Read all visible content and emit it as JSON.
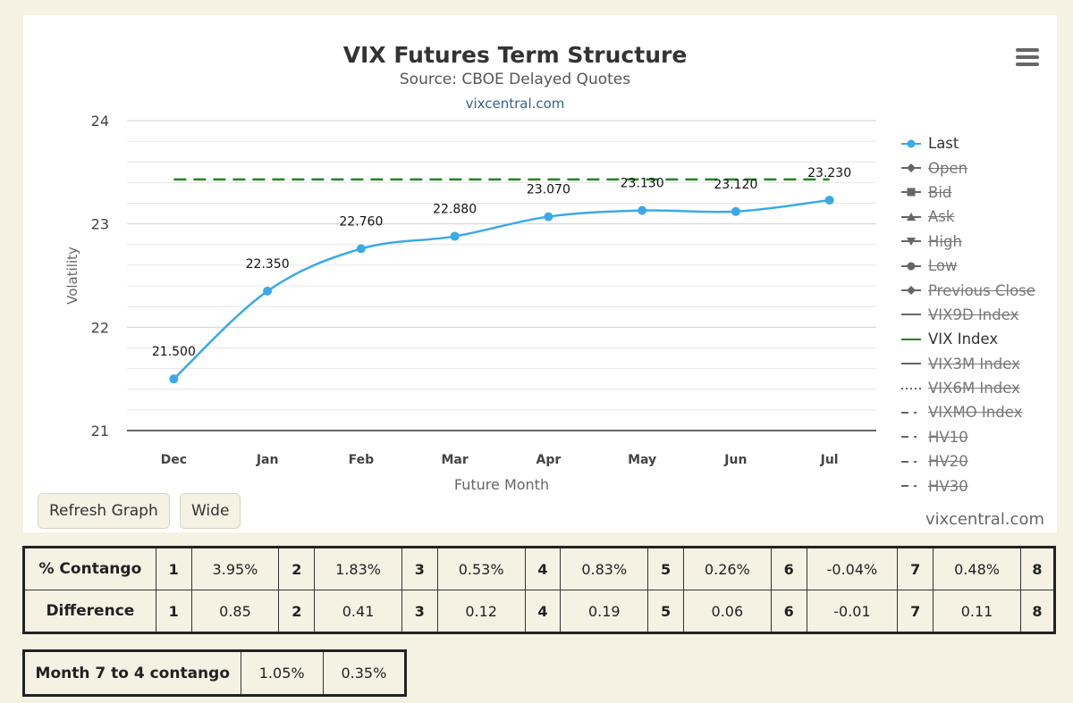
{
  "chart_data": {
    "type": "line",
    "title": "VIX Futures Term Structure",
    "subtitle": "Source: CBOE Delayed Quotes",
    "link": "vixcentral.com",
    "watermark": "vixcentral.com",
    "xlabel": "Future Month",
    "ylabel": "Volatility",
    "categories": [
      "Dec",
      "Jan",
      "Feb",
      "Mar",
      "Apr",
      "May",
      "Jun",
      "Jul"
    ],
    "ylim": [
      21,
      24
    ],
    "yticks": [
      "21",
      "22",
      "23",
      "24"
    ],
    "series": [
      {
        "name": "Last",
        "values": [
          21.5,
          22.35,
          22.76,
          22.88,
          23.07,
          23.13,
          23.12,
          23.23
        ],
        "labels": [
          "21.500",
          "22.350",
          "22.760",
          "22.880",
          "23.070",
          "23.130",
          "23.120",
          "23.230"
        ],
        "color": "#3aa9e8"
      },
      {
        "name": "VIX Index",
        "value": 23.43,
        "color": "#1a8a1a",
        "style": "dashed"
      }
    ],
    "legend": [
      {
        "label": "Last",
        "symbol": "line-dot",
        "active": true
      },
      {
        "label": "Open",
        "symbol": "line-diamond",
        "active": false
      },
      {
        "label": "Bid",
        "symbol": "line-square",
        "active": false
      },
      {
        "label": "Ask",
        "symbol": "line-triangle",
        "active": false
      },
      {
        "label": "High",
        "symbol": "line-triangle-down",
        "active": false
      },
      {
        "label": "Low",
        "symbol": "line-dot",
        "active": false
      },
      {
        "label": "Previous Close",
        "symbol": "line-diamond",
        "active": false
      },
      {
        "label": "VIX9D Index",
        "symbol": "line",
        "active": false
      },
      {
        "label": "VIX Index",
        "symbol": "line",
        "active": true
      },
      {
        "label": "VIX3M Index",
        "symbol": "line",
        "active": false
      },
      {
        "label": "VIX6M Index",
        "symbol": "dotted",
        "active": false
      },
      {
        "label": "VIXMO Index",
        "symbol": "dashdot",
        "active": false
      },
      {
        "label": "HV10",
        "symbol": "dashdot",
        "active": false
      },
      {
        "label": "HV20",
        "symbol": "dashdot",
        "active": false
      },
      {
        "label": "HV30",
        "symbol": "dashdot",
        "active": false
      }
    ]
  },
  "menu_icon": "hamburger-menu-icon",
  "buttons": {
    "refresh": "Refresh Graph",
    "wide": "Wide"
  },
  "contango_table": {
    "rows": [
      {
        "label": "% Contango",
        "cells": [
          [
            "1",
            "3.95%"
          ],
          [
            "2",
            "1.83%"
          ],
          [
            "3",
            "0.53%"
          ],
          [
            "4",
            "0.83%"
          ],
          [
            "5",
            "0.26%"
          ],
          [
            "6",
            "-0.04%"
          ],
          [
            "7",
            "0.48%"
          ],
          [
            "8",
            ""
          ]
        ]
      },
      {
        "label": "Difference",
        "cells": [
          [
            "1",
            "0.85"
          ],
          [
            "2",
            "0.41"
          ],
          [
            "3",
            "0.12"
          ],
          [
            "4",
            "0.19"
          ],
          [
            "5",
            "0.06"
          ],
          [
            "6",
            "-0.01"
          ],
          [
            "7",
            "0.11"
          ],
          [
            "8",
            ""
          ]
        ]
      }
    ]
  },
  "month_table": {
    "label": "Month 7 to 4 contango",
    "values": [
      "1.05%",
      "0.35%"
    ]
  }
}
